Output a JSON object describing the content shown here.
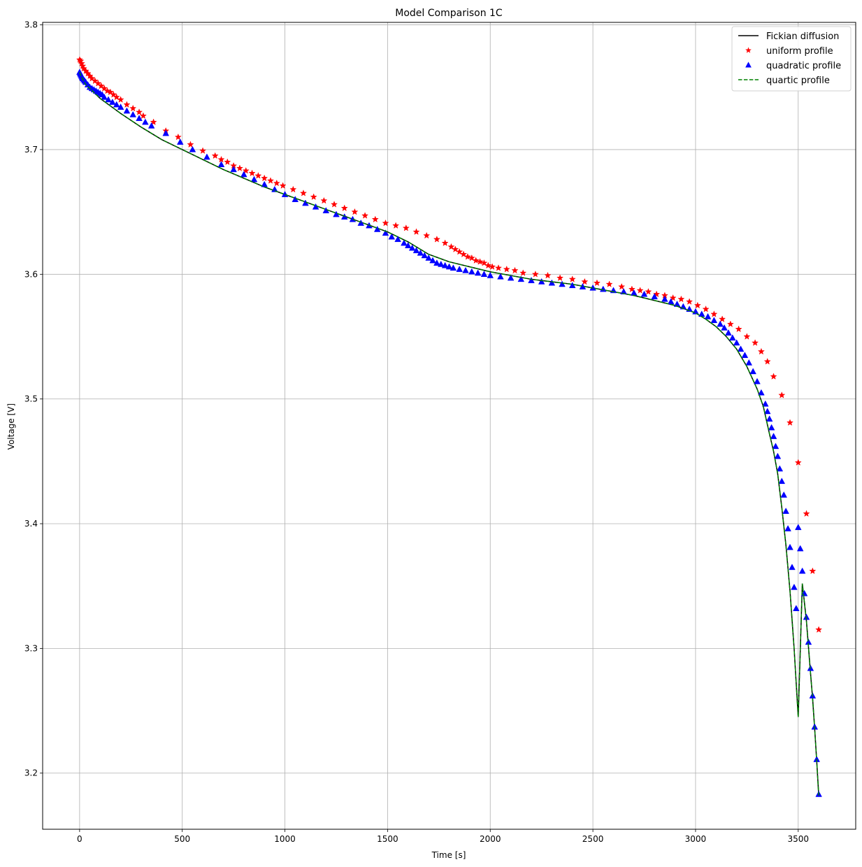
{
  "chart_data": {
    "type": "line",
    "title": "Model Comparison 1C",
    "xlabel": "Time [s]",
    "ylabel": "Voltage [V]",
    "xlim": [
      -180,
      3780
    ],
    "ylim": [
      3.155,
      3.802
    ],
    "x_ticks": [
      0,
      500,
      1000,
      1500,
      2000,
      2500,
      3000,
      3500
    ],
    "y_ticks": [
      3.2,
      3.3,
      3.4,
      3.5,
      3.6,
      3.7,
      3.8
    ],
    "x_tick_labels": [
      "0",
      "500",
      "1000",
      "1500",
      "2000",
      "2500",
      "3000",
      "3500"
    ],
    "y_tick_labels": [
      "3.2",
      "3.3",
      "3.4",
      "3.5",
      "3.6",
      "3.7",
      "3.8"
    ],
    "grid": true,
    "legend_position": "top-right",
    "series": [
      {
        "name": "Fickian diffusion",
        "style": "solid-line",
        "color": "#000000",
        "x": [
          0,
          5,
          10,
          20,
          30,
          50,
          75,
          100,
          150,
          200,
          300,
          400,
          500,
          600,
          700,
          800,
          900,
          1000,
          1100,
          1200,
          1300,
          1400,
          1500,
          1600,
          1700,
          1800,
          1900,
          2000,
          2100,
          2200,
          2300,
          2400,
          2500,
          2600,
          2700,
          2800,
          2900,
          3000,
          3050,
          3100,
          3150,
          3200,
          3250,
          3300,
          3330,
          3360,
          3380,
          3400,
          3420,
          3440,
          3460,
          3480,
          3500,
          3520,
          3540,
          3560,
          3570,
          3580,
          3590,
          3600
        ],
        "y": [
          3.762,
          3.76,
          3.758,
          3.755,
          3.752,
          3.749,
          3.745,
          3.741,
          3.735,
          3.729,
          3.718,
          3.708,
          3.7,
          3.692,
          3.684,
          3.677,
          3.67,
          3.664,
          3.658,
          3.652,
          3.646,
          3.64,
          3.634,
          3.626,
          3.616,
          3.61,
          3.606,
          3.602,
          3.599,
          3.596,
          3.594,
          3.592,
          3.589,
          3.586,
          3.583,
          3.579,
          3.575,
          3.569,
          3.564,
          3.558,
          3.55,
          3.54,
          3.526,
          3.508,
          3.494,
          3.472,
          3.458,
          3.44,
          3.413,
          3.383,
          3.346,
          3.3,
          3.245,
          3.352,
          3.322,
          3.28,
          3.26,
          3.236,
          3.21,
          3.182
        ]
      },
      {
        "name": "uniform profile",
        "style": "star-markers",
        "color": "#ff0000",
        "x": [
          0,
          5,
          10,
          15,
          20,
          30,
          40,
          50,
          60,
          75,
          90,
          105,
          120,
          135,
          150,
          165,
          180,
          200,
          230,
          260,
          290,
          310,
          360,
          420,
          480,
          540,
          600,
          660,
          690,
          720,
          750,
          780,
          810,
          840,
          870,
          900,
          930,
          960,
          990,
          1040,
          1090,
          1140,
          1190,
          1240,
          1290,
          1340,
          1390,
          1440,
          1490,
          1540,
          1590,
          1640,
          1690,
          1740,
          1780,
          1810,
          1830,
          1850,
          1870,
          1890,
          1910,
          1930,
          1950,
          1970,
          1990,
          2010,
          2040,
          2080,
          2120,
          2160,
          2220,
          2280,
          2340,
          2400,
          2460,
          2520,
          2580,
          2640,
          2690,
          2730,
          2770,
          2810,
          2850,
          2890,
          2930,
          2970,
          3010,
          3050,
          3090,
          3130,
          3170,
          3210,
          3250,
          3290,
          3320,
          3350,
          3380,
          3420,
          3460,
          3500,
          3540,
          3570,
          3600
        ],
        "y": [
          3.772,
          3.771,
          3.769,
          3.767,
          3.765,
          3.763,
          3.761,
          3.759,
          3.757,
          3.755,
          3.753,
          3.751,
          3.749,
          3.747,
          3.746,
          3.744,
          3.742,
          3.74,
          3.736,
          3.733,
          3.73,
          3.727,
          3.722,
          3.715,
          3.71,
          3.704,
          3.699,
          3.695,
          3.692,
          3.69,
          3.687,
          3.685,
          3.683,
          3.681,
          3.679,
          3.677,
          3.675,
          3.673,
          3.671,
          3.668,
          3.665,
          3.662,
          3.659,
          3.656,
          3.653,
          3.65,
          3.647,
          3.644,
          3.641,
          3.639,
          3.637,
          3.634,
          3.631,
          3.628,
          3.625,
          3.622,
          3.62,
          3.618,
          3.616,
          3.614,
          3.613,
          3.611,
          3.61,
          3.609,
          3.607,
          3.606,
          3.605,
          3.604,
          3.603,
          3.601,
          3.6,
          3.599,
          3.597,
          3.596,
          3.594,
          3.593,
          3.592,
          3.59,
          3.588,
          3.587,
          3.586,
          3.584,
          3.583,
          3.581,
          3.58,
          3.578,
          3.575,
          3.572,
          3.568,
          3.564,
          3.56,
          3.556,
          3.55,
          3.545,
          3.538,
          3.53,
          3.518,
          3.503,
          3.481,
          3.449,
          3.408,
          3.362,
          3.315
        ]
      },
      {
        "name": "quadratic profile",
        "style": "triangle-markers",
        "color": "#0000ff",
        "x": [
          0,
          3,
          6,
          9,
          12,
          15,
          20,
          25,
          30,
          40,
          50,
          60,
          70,
          80,
          90,
          100,
          110,
          120,
          140,
          160,
          180,
          200,
          230,
          260,
          290,
          320,
          350,
          420,
          490,
          550,
          620,
          690,
          750,
          800,
          850,
          900,
          950,
          1000,
          1050,
          1100,
          1150,
          1200,
          1250,
          1290,
          1330,
          1370,
          1410,
          1450,
          1490,
          1520,
          1550,
          1580,
          1600,
          1620,
          1640,
          1660,
          1680,
          1700,
          1720,
          1740,
          1760,
          1780,
          1800,
          1820,
          1850,
          1880,
          1910,
          1940,
          1970,
          2000,
          2050,
          2100,
          2150,
          2200,
          2250,
          2300,
          2350,
          2400,
          2450,
          2500,
          2550,
          2600,
          2650,
          2700,
          2750,
          2800,
          2850,
          2880,
          2910,
          2940,
          2970,
          3000,
          3030,
          3060,
          3090,
          3120,
          3140,
          3160,
          3180,
          3200,
          3220,
          3240,
          3260,
          3280,
          3300,
          3320,
          3340,
          3350,
          3360,
          3370,
          3380,
          3390,
          3400,
          3410,
          3420,
          3430,
          3440,
          3450,
          3460,
          3470,
          3480,
          3490,
          3500,
          3510,
          3520,
          3530,
          3540,
          3550,
          3560,
          3570,
          3580,
          3590,
          3600
        ],
        "y": [
          3.762,
          3.761,
          3.76,
          3.759,
          3.758,
          3.757,
          3.756,
          3.755,
          3.754,
          3.752,
          3.75,
          3.749,
          3.748,
          3.747,
          3.746,
          3.745,
          3.744,
          3.742,
          3.74,
          3.738,
          3.736,
          3.734,
          3.731,
          3.728,
          3.725,
          3.722,
          3.719,
          3.713,
          3.706,
          3.7,
          3.694,
          3.688,
          3.684,
          3.68,
          3.676,
          3.672,
          3.668,
          3.664,
          3.66,
          3.657,
          3.654,
          3.651,
          3.648,
          3.646,
          3.644,
          3.641,
          3.639,
          3.636,
          3.633,
          3.63,
          3.628,
          3.625,
          3.623,
          3.621,
          3.619,
          3.617,
          3.615,
          3.613,
          3.611,
          3.609,
          3.608,
          3.607,
          3.606,
          3.605,
          3.604,
          3.603,
          3.602,
          3.601,
          3.6,
          3.599,
          3.598,
          3.597,
          3.596,
          3.595,
          3.594,
          3.593,
          3.592,
          3.591,
          3.59,
          3.589,
          3.588,
          3.587,
          3.586,
          3.585,
          3.584,
          3.582,
          3.58,
          3.578,
          3.576,
          3.574,
          3.572,
          3.57,
          3.568,
          3.566,
          3.563,
          3.56,
          3.557,
          3.553,
          3.549,
          3.545,
          3.54,
          3.535,
          3.529,
          3.522,
          3.514,
          3.505,
          3.496,
          3.49,
          3.484,
          3.477,
          3.47,
          3.462,
          3.454,
          3.444,
          3.434,
          3.423,
          3.41,
          3.396,
          3.381,
          3.365,
          3.349,
          3.332,
          3.397,
          3.38,
          3.362,
          3.344,
          3.325,
          3.305,
          3.284,
          3.262,
          3.237,
          3.211,
          3.183
        ]
      },
      {
        "name": "quartic profile",
        "style": "dashed-line",
        "color": "#008000",
        "x": [
          0,
          5,
          10,
          20,
          30,
          50,
          75,
          100,
          150,
          200,
          300,
          400,
          500,
          600,
          700,
          800,
          900,
          1000,
          1100,
          1200,
          1300,
          1400,
          1500,
          1600,
          1700,
          1800,
          1900,
          2000,
          2100,
          2200,
          2300,
          2400,
          2500,
          2600,
          2700,
          2800,
          2900,
          3000,
          3050,
          3100,
          3150,
          3200,
          3250,
          3300,
          3330,
          3360,
          3380,
          3400,
          3420,
          3440,
          3460,
          3480,
          3500,
          3520,
          3540,
          3560,
          3570,
          3580,
          3590,
          3600
        ],
        "y": [
          3.762,
          3.76,
          3.758,
          3.755,
          3.752,
          3.749,
          3.745,
          3.741,
          3.735,
          3.729,
          3.718,
          3.708,
          3.7,
          3.692,
          3.684,
          3.677,
          3.67,
          3.664,
          3.658,
          3.652,
          3.646,
          3.64,
          3.634,
          3.626,
          3.616,
          3.61,
          3.606,
          3.602,
          3.599,
          3.596,
          3.594,
          3.592,
          3.589,
          3.586,
          3.583,
          3.579,
          3.575,
          3.569,
          3.564,
          3.558,
          3.55,
          3.54,
          3.526,
          3.508,
          3.494,
          3.472,
          3.458,
          3.44,
          3.413,
          3.383,
          3.346,
          3.3,
          3.245,
          3.352,
          3.322,
          3.28,
          3.26,
          3.236,
          3.21,
          3.182
        ]
      }
    ]
  }
}
